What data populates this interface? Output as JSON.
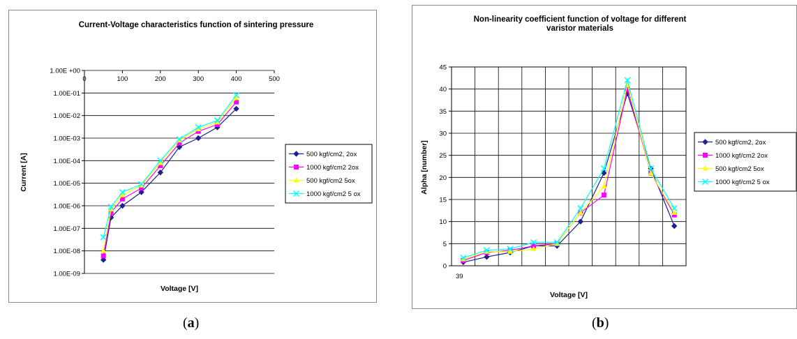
{
  "chart_data": [
    {
      "type": "line",
      "title": "Current-Voltage characteristics  function of sintering pressure",
      "xlabel": "Voltage [V]",
      "ylabel": "Current [A]",
      "x_scale": "linear",
      "y_scale": "log",
      "xlim": [
        0,
        500
      ],
      "ylim": [
        1e-09,
        1
      ],
      "x_ticks": [
        "0",
        "100",
        "200",
        "300",
        "400",
        "500"
      ],
      "y_ticks": [
        "1.00E +00",
        "1.00E-01",
        "1.00E-02",
        "1.00E-03",
        "1.00E-04",
        "1.00E-05",
        "1.00E-06",
        "1.00E-07",
        "1.00E-08",
        "1.00E-09"
      ],
      "x": [
        50,
        70,
        100,
        150,
        200,
        250,
        300,
        350,
        400
      ],
      "grid": "horizontal",
      "legend_position": "right",
      "series": [
        {
          "name": "500 kgf/cm2, 2ox",
          "color": "#1f1f8f",
          "marker": "diamond",
          "values": [
            4e-09,
            3e-07,
            1e-06,
            4e-06,
            3e-05,
            0.0004,
            0.001,
            0.003,
            0.02
          ]
        },
        {
          "name": "1000 kgf/cm2 2ox",
          "color": "#ff00ff",
          "marker": "square",
          "values": [
            6e-09,
            5e-07,
            2e-06,
            6e-06,
            6e-05,
            0.0006,
            0.002,
            0.004,
            0.04
          ]
        },
        {
          "name": "500 kgf/cm2 5ox",
          "color": "#ffff00",
          "marker": "triangle",
          "values": [
            1e-08,
            7e-07,
            3e-06,
            8e-06,
            8e-05,
            0.0008,
            0.0025,
            0.005,
            0.06
          ]
        },
        {
          "name": "1000 kgf/cm2 5 ox",
          "color": "#00ffff",
          "marker": "x",
          "values": [
            4e-08,
            9e-07,
            4e-06,
            9e-06,
            0.0001,
            0.0009,
            0.003,
            0.006,
            0.08
          ]
        }
      ]
    },
    {
      "type": "line",
      "title": "Non-linearity coefficient function of voltage for different varistor materials",
      "title_lines": [
        "Non-linearity coefficient function of voltage for different",
        "varistor materials"
      ],
      "xlabel": "Voltage [V]",
      "ylabel": "Alpha [number]",
      "ylim": [
        0,
        45
      ],
      "y_ticks": [
        "0",
        "5",
        "10",
        "15",
        "20",
        "25",
        "30",
        "35",
        "40",
        "45"
      ],
      "x_tick_labels": [
        "39"
      ],
      "grid": "both",
      "legend_position": "right",
      "series": [
        {
          "name": "500 kgf/cm2, 2ox",
          "color": "#1f1f8f",
          "marker": "diamond",
          "values": [
            0.8,
            2,
            3,
            4.5,
            4.5,
            10,
            21,
            39,
            22,
            9
          ]
        },
        {
          "name": "1000 kgf/cm2 2ox",
          "color": "#ff00ff",
          "marker": "square",
          "values": [
            1.2,
            3,
            3.5,
            4.5,
            5,
            12,
            16,
            40,
            21,
            11.5
          ]
        },
        {
          "name": "500 kgf/cm2 5ox",
          "color": "#ffff00",
          "marker": "triangle",
          "values": [
            1.5,
            3.2,
            3.2,
            3.8,
            5,
            12,
            18,
            41,
            21,
            12
          ]
        },
        {
          "name": "1000 kgf/cm2 5 ox",
          "color": "#00ffff",
          "marker": "x",
          "values": [
            1.8,
            3.5,
            3.8,
            5.3,
            5.3,
            13,
            22,
            42,
            22,
            13
          ]
        }
      ]
    }
  ],
  "captions": {
    "a": {
      "open": "(",
      "letter": "a",
      "close": ")"
    },
    "b": {
      "open": "(",
      "letter": "b",
      "close": ")"
    }
  }
}
